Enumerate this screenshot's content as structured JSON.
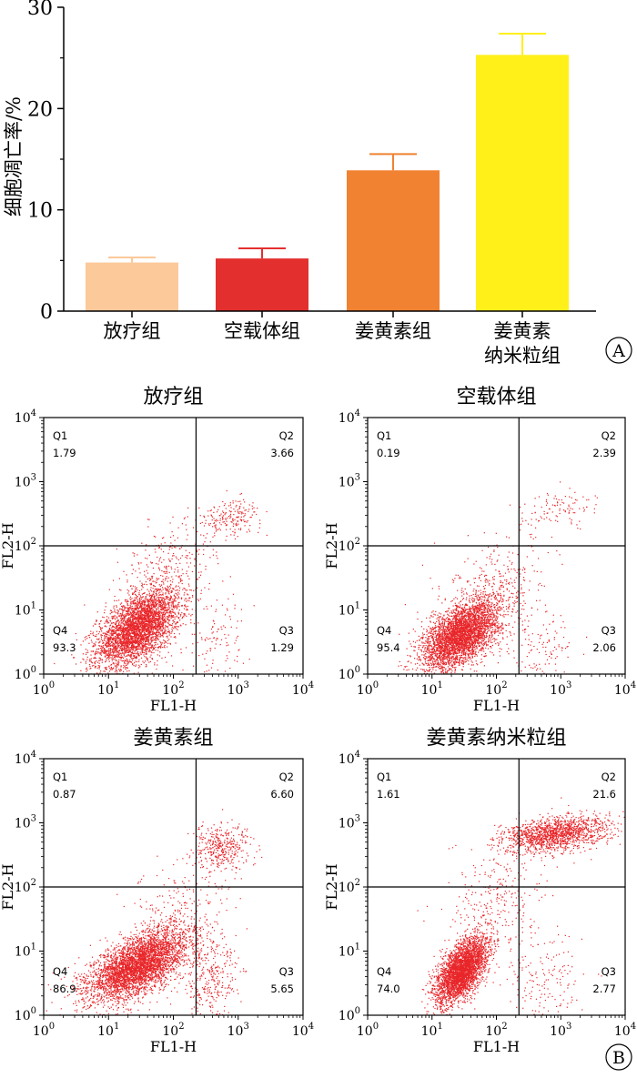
{
  "chart_data": [
    {
      "type": "bar",
      "panel_label": "A",
      "ylabel": "细胞凋亡率/%",
      "ylim": [
        0,
        30
      ],
      "yticks": [
        "0",
        "10",
        "20",
        "30"
      ],
      "categories": [
        "放疗组",
        "空载体组",
        "姜黄素组",
        "姜黄素\n纳米粒组"
      ],
      "values": [
        4.8,
        5.2,
        13.9,
        25.3
      ],
      "errors": [
        0.5,
        1.0,
        1.6,
        2.1
      ],
      "colors": [
        "#fcc99a",
        "#e3302f",
        "#f08232",
        "#fff01a"
      ]
    },
    {
      "type": "scatter",
      "panel_label": "B",
      "xlabel": "FL1-H",
      "ylabel": "FL2-H",
      "axis_ticks": [
        "10",
        "10",
        "10",
        "10",
        "10"
      ],
      "axis_exponents": [
        "0",
        "1",
        "2",
        "3",
        "4"
      ],
      "point_color": "#e8262a",
      "plots": [
        {
          "title": "放疗组",
          "quadrants": [
            {
              "name": "Q1",
              "value": "1.79"
            },
            {
              "name": "Q2",
              "value": "3.66"
            },
            {
              "name": "Q3",
              "value": "1.29"
            },
            {
              "name": "Q4",
              "value": "93.3"
            }
          ]
        },
        {
          "title": "空载体组",
          "quadrants": [
            {
              "name": "Q1",
              "value": "0.19"
            },
            {
              "name": "Q2",
              "value": "2.39"
            },
            {
              "name": "Q3",
              "value": "2.06"
            },
            {
              "name": "Q4",
              "value": "95.4"
            }
          ]
        },
        {
          "title": "姜黄素组",
          "quadrants": [
            {
              "name": "Q1",
              "value": "0.87"
            },
            {
              "name": "Q2",
              "value": "6.60"
            },
            {
              "name": "Q3",
              "value": "5.65"
            },
            {
              "name": "Q4",
              "value": "86.9"
            }
          ]
        },
        {
          "title": "姜黄素纳米粒组",
          "quadrants": [
            {
              "name": "Q1",
              "value": "1.61"
            },
            {
              "name": "Q2",
              "value": "21.6"
            },
            {
              "name": "Q3",
              "value": "2.77"
            },
            {
              "name": "Q4",
              "value": "74.0"
            }
          ]
        }
      ]
    }
  ]
}
